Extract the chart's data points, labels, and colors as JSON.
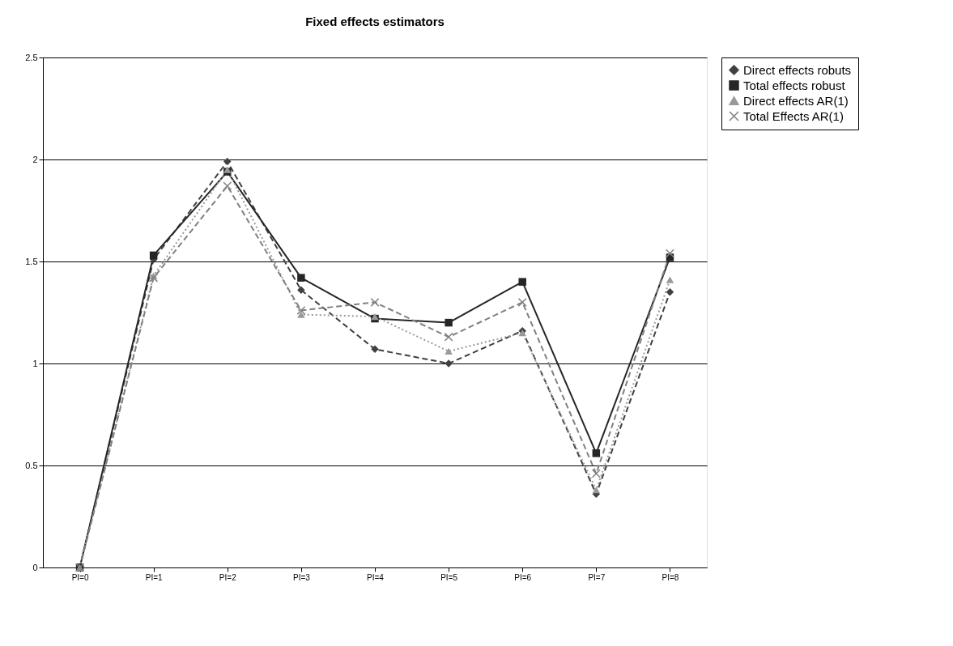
{
  "chart_data": {
    "type": "line",
    "title": "Fixed effects estimators",
    "categories": [
      "PI=0",
      "PI=1",
      "PI=2",
      "PI=3",
      "PI=4",
      "PI=5",
      "PI=6",
      "PI=7",
      "PI=8"
    ],
    "series": [
      {
        "name": "Direct effects robuts",
        "color": "#404040",
        "marker": "diamond",
        "line_style": "dashed",
        "values": [
          0,
          1.51,
          1.99,
          1.36,
          1.07,
          1.0,
          1.16,
          0.36,
          1.35
        ]
      },
      {
        "name": "Total effects robust",
        "color": "#262626",
        "marker": "square",
        "line_style": "solid",
        "values": [
          0,
          1.53,
          1.94,
          1.42,
          1.22,
          1.2,
          1.4,
          0.56,
          1.52
        ]
      },
      {
        "name": "Direct effects AR(1)",
        "color": "#999999",
        "marker": "triangle",
        "line_style": "dotted",
        "values": [
          0,
          1.43,
          1.95,
          1.24,
          1.23,
          1.06,
          1.15,
          0.38,
          1.41
        ]
      },
      {
        "name": "Total Effects AR(1)",
        "color": "#808080",
        "marker": "cross",
        "line_style": "dashed",
        "values": [
          0,
          1.42,
          1.87,
          1.26,
          1.3,
          1.13,
          1.3,
          0.46,
          1.54
        ]
      }
    ],
    "ylim": [
      0,
      2.5
    ],
    "yticks": [
      0,
      0.5,
      1,
      1.5,
      2,
      2.5
    ],
    "grid": "y",
    "legend": "right"
  }
}
